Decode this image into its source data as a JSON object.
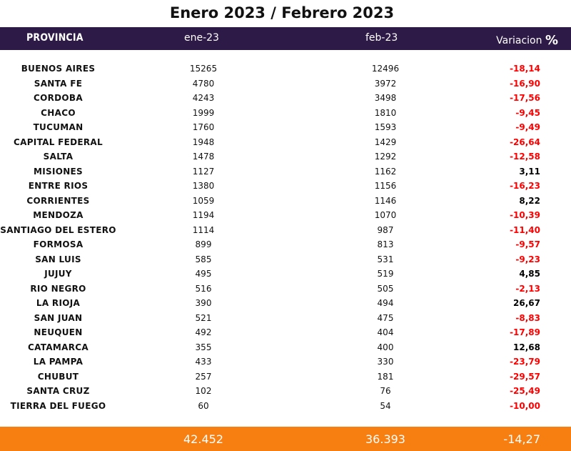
{
  "title": "Enero 2023 / Febrero 2023",
  "header": {
    "provincia": "PROVINCIA",
    "ene": "ene-23",
    "feb": "feb-23",
    "variacion": "Variacion",
    "percent": "%"
  },
  "rows": [
    {
      "provincia": "BUENOS AIRES",
      "ene": "15265",
      "feb": "12496",
      "variacion": "-18,14"
    },
    {
      "provincia": "SANTA FE",
      "ene": "4780",
      "feb": "3972",
      "variacion": "-16,90"
    },
    {
      "provincia": "CORDOBA",
      "ene": "4243",
      "feb": "3498",
      "variacion": "-17,56"
    },
    {
      "provincia": "CHACO",
      "ene": "1999",
      "feb": "1810",
      "variacion": "-9,45"
    },
    {
      "provincia": "TUCUMAN",
      "ene": "1760",
      "feb": "1593",
      "variacion": "-9,49"
    },
    {
      "provincia": "CAPITAL FEDERAL",
      "ene": "1948",
      "feb": "1429",
      "variacion": "-26,64"
    },
    {
      "provincia": "SALTA",
      "ene": "1478",
      "feb": "1292",
      "variacion": "-12,58"
    },
    {
      "provincia": "MISIONES",
      "ene": "1127",
      "feb": "1162",
      "variacion": "3,11"
    },
    {
      "provincia": "ENTRE RIOS",
      "ene": "1380",
      "feb": "1156",
      "variacion": "-16,23"
    },
    {
      "provincia": "CORRIENTES",
      "ene": "1059",
      "feb": "1146",
      "variacion": "8,22"
    },
    {
      "provincia": "MENDOZA",
      "ene": "1194",
      "feb": "1070",
      "variacion": "-10,39"
    },
    {
      "provincia": "SANTIAGO DEL ESTERO",
      "ene": "1114",
      "feb": "987",
      "variacion": "-11,40"
    },
    {
      "provincia": "FORMOSA",
      "ene": "899",
      "feb": "813",
      "variacion": "-9,57"
    },
    {
      "provincia": "SAN LUIS",
      "ene": "585",
      "feb": "531",
      "variacion": "-9,23"
    },
    {
      "provincia": "JUJUY",
      "ene": "495",
      "feb": "519",
      "variacion": "4,85"
    },
    {
      "provincia": "RIO NEGRO",
      "ene": "516",
      "feb": "505",
      "variacion": "-2,13"
    },
    {
      "provincia": "LA RIOJA",
      "ene": "390",
      "feb": "494",
      "variacion": "26,67"
    },
    {
      "provincia": "SAN JUAN",
      "ene": "521",
      "feb": "475",
      "variacion": "-8,83"
    },
    {
      "provincia": "NEUQUEN",
      "ene": "492",
      "feb": "404",
      "variacion": "-17,89"
    },
    {
      "provincia": "CATAMARCA",
      "ene": "355",
      "feb": "400",
      "variacion": "12,68"
    },
    {
      "provincia": "LA PAMPA",
      "ene": "433",
      "feb": "330",
      "variacion": "-23,79"
    },
    {
      "provincia": "CHUBUT",
      "ene": "257",
      "feb": "181",
      "variacion": "-29,57"
    },
    {
      "provincia": "SANTA CRUZ",
      "ene": "102",
      "feb": "76",
      "variacion": "-25,49"
    },
    {
      "provincia": "TIERRA DEL FUEGO",
      "ene": "60",
      "feb": "54",
      "variacion": "-10,00"
    }
  ],
  "totals": {
    "ene": "42.452",
    "feb": "36.393",
    "variacion": "-14,27"
  },
  "colors": {
    "header_bg": "#2e1a47",
    "footer_bg": "#f77f11",
    "negative": "#ff0000",
    "positive": "#000000"
  }
}
